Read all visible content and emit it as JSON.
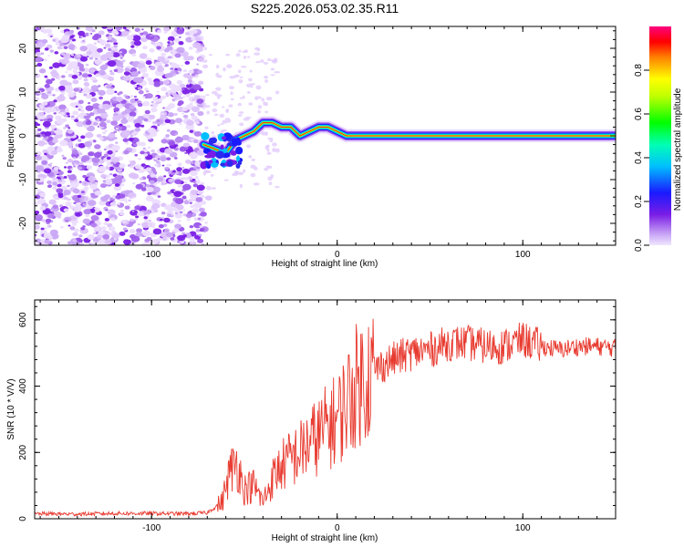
{
  "title": "S225.2026.053.02.35.R11",
  "chart_data": [
    {
      "type": "heatmap",
      "name": "spectrogram",
      "title": "S225.2026.053.02.35.R11",
      "xlabel": "Height of straight line (km)",
      "ylabel": "Frequency (Hz)",
      "xlim": [
        -163,
        150
      ],
      "ylim": [
        -25,
        25
      ],
      "xticks": [
        -100,
        0,
        100
      ],
      "yticks": [
        -20,
        -10,
        0,
        10,
        20
      ],
      "colorbar": {
        "label": "Normalized spectral amplitude",
        "range": [
          0,
          1
        ],
        "ticks": [
          0.0,
          0.2,
          0.4,
          0.6,
          0.8
        ]
      },
      "centerline": [
        {
          "x": -72,
          "y": -2
        },
        {
          "x": -66,
          "y": -3
        },
        {
          "x": -60,
          "y": -4
        },
        {
          "x": -55,
          "y": -1
        },
        {
          "x": -50,
          "y": 0
        },
        {
          "x": -45,
          "y": 1
        },
        {
          "x": -40,
          "y": 3
        },
        {
          "x": -35,
          "y": 3
        },
        {
          "x": -30,
          "y": 2
        },
        {
          "x": -25,
          "y": 2
        },
        {
          "x": -20,
          "y": 0
        },
        {
          "x": -15,
          "y": 1
        },
        {
          "x": -10,
          "y": 2
        },
        {
          "x": -5,
          "y": 2
        },
        {
          "x": 0,
          "y": 1
        },
        {
          "x": 5,
          "y": 0
        },
        {
          "x": 150,
          "y": 0
        }
      ]
    },
    {
      "type": "line",
      "name": "snr",
      "xlabel": "Height of straight line (km)",
      "ylabel": "SNR (10 * V/V)",
      "xlim": [
        -163,
        150
      ],
      "ylim": [
        0,
        660
      ],
      "xticks": [
        -100,
        0,
        100
      ],
      "yticks": [
        0,
        200,
        400,
        600
      ],
      "color": "#e83b30",
      "x": [
        -160,
        -140,
        -120,
        -100,
        -80,
        -70,
        -62,
        -58,
        -54,
        -50,
        -45,
        -40,
        -35,
        -30,
        -25,
        -20,
        -15,
        -10,
        -5,
        0,
        5,
        10,
        15,
        20,
        30,
        40,
        50,
        60,
        70,
        80,
        90,
        95,
        100,
        110,
        120,
        130,
        140,
        150
      ],
      "y": [
        15,
        14,
        16,
        16,
        15,
        18,
        50,
        140,
        170,
        90,
        100,
        50,
        120,
        160,
        180,
        200,
        230,
        250,
        280,
        300,
        350,
        400,
        430,
        450,
        480,
        500,
        510,
        530,
        530,
        520,
        520,
        530,
        540,
        520,
        510,
        520,
        520,
        515
      ]
    }
  ]
}
